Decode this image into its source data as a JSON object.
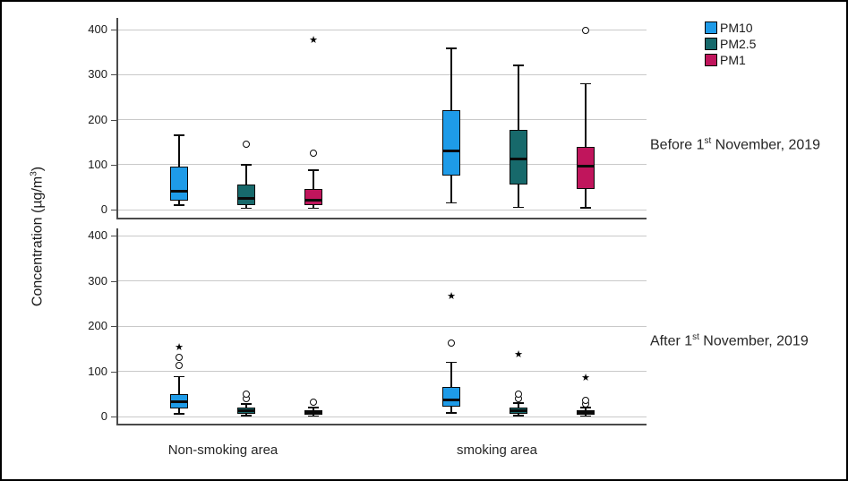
{
  "legend": {
    "items": [
      {
        "label": "PM10",
        "color": "#1E9BE8"
      },
      {
        "label": "PM2.5",
        "color": "#17696B"
      },
      {
        "label": "PM1",
        "color": "#C0155C"
      }
    ]
  },
  "y_axis": {
    "prefix": "Concentration (µg/m",
    "sup": "3",
    "suffix": ")"
  },
  "row_labels": [
    {
      "prefix": "Before 1",
      "sup": "st",
      "suffix": " November, 2019"
    },
    {
      "prefix": "After 1",
      "sup": "st",
      "suffix": " November, 2019"
    }
  ],
  "x_categories": [
    "Non-smoking area",
    "smoking area"
  ],
  "chart_data": {
    "type": "boxplot",
    "ylabel": "Concentration (µg/m³)",
    "ylim": [
      0,
      400
    ],
    "yticks": [
      0,
      100,
      200,
      300,
      400
    ],
    "grid": true,
    "legend_position": "top-right",
    "groups": [
      "Non-smoking area",
      "smoking area"
    ],
    "series": [
      "PM10",
      "PM2.5",
      "PM1"
    ],
    "series_colors": {
      "PM10": "#1E9BE8",
      "PM2.5": "#17696B",
      "PM1": "#C0155C"
    },
    "panels": [
      {
        "label": "Before 1st November, 2019",
        "boxes": [
          {
            "group": "Non-smoking area",
            "series": "PM10",
            "whisker_low": 10,
            "q1": 20,
            "median": 40,
            "q3": 95,
            "whisker_high": 165,
            "outliers": [],
            "extremes": []
          },
          {
            "group": "Non-smoking area",
            "series": "PM2.5",
            "whisker_low": 3,
            "q1": 10,
            "median": 24,
            "q3": 55,
            "whisker_high": 100,
            "outliers": [
              145
            ],
            "extremes": []
          },
          {
            "group": "Non-smoking area",
            "series": "PM1",
            "whisker_low": 3,
            "q1": 10,
            "median": 20,
            "q3": 45,
            "whisker_high": 88,
            "outliers": [
              125
            ],
            "extremes": [
              375
            ]
          },
          {
            "group": "smoking area",
            "series": "PM10",
            "whisker_low": 15,
            "q1": 75,
            "median": 130,
            "q3": 220,
            "whisker_high": 358,
            "outliers": [],
            "extremes": []
          },
          {
            "group": "smoking area",
            "series": "PM2.5",
            "whisker_low": 5,
            "q1": 55,
            "median": 112,
            "q3": 178,
            "whisker_high": 320,
            "outliers": [],
            "extremes": []
          },
          {
            "group": "smoking area",
            "series": "PM1",
            "whisker_low": 4,
            "q1": 46,
            "median": 97,
            "q3": 140,
            "whisker_high": 280,
            "outliers": [
              398
            ],
            "extremes": []
          }
        ]
      },
      {
        "label": "After 1st November, 2019",
        "boxes": [
          {
            "group": "Non-smoking area",
            "series": "PM10",
            "whisker_low": 6,
            "q1": 18,
            "median": 32,
            "q3": 50,
            "whisker_high": 88,
            "outliers": [
              112,
              130
            ],
            "extremes": [
              152
            ]
          },
          {
            "group": "Non-smoking area",
            "series": "PM2.5",
            "whisker_low": 2,
            "q1": 6,
            "median": 12,
            "q3": 20,
            "whisker_high": 28,
            "outliers": [
              40,
              50
            ],
            "extremes": []
          },
          {
            "group": "Non-smoking area",
            "series": "PM1",
            "whisker_low": 1,
            "q1": 3,
            "median": 8,
            "q3": 14,
            "whisker_high": 20,
            "outliers": [
              32
            ],
            "extremes": []
          },
          {
            "group": "smoking area",
            "series": "PM10",
            "whisker_low": 8,
            "q1": 22,
            "median": 36,
            "q3": 66,
            "whisker_high": 120,
            "outliers": [
              163
            ],
            "extremes": [
              265
            ]
          },
          {
            "group": "smoking area",
            "series": "PM2.5",
            "whisker_low": 2,
            "q1": 5,
            "median": 12,
            "q3": 20,
            "whisker_high": 30,
            "outliers": [
              40,
              50
            ],
            "extremes": [
              135
            ]
          },
          {
            "group": "smoking area",
            "series": "PM1",
            "whisker_low": 1,
            "q1": 3,
            "median": 8,
            "q3": 14,
            "whisker_high": 20,
            "outliers": [
              28,
              35
            ],
            "extremes": [
              85
            ]
          }
        ]
      }
    ]
  }
}
